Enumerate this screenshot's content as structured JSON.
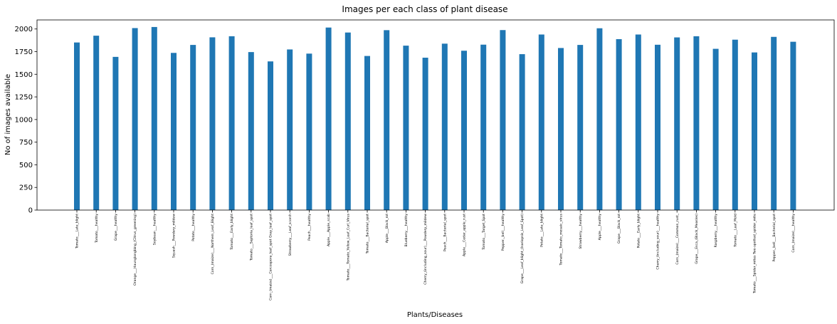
{
  "chart_data": {
    "type": "bar",
    "title": "Images per each class of plant disease",
    "xlabel": "Plants/Diseases",
    "ylabel": "No of images available",
    "ylim": [
      0,
      2100
    ],
    "yticks": [
      0,
      250,
      500,
      750,
      1000,
      1250,
      1500,
      1750,
      2000
    ],
    "bar_color": "#1f77b4",
    "grid": false,
    "categories": [
      "Tomato___Late_blight",
      "Tomato___healthy",
      "Grape___healthy",
      "Orange___Haunglongbing_(Citrus_greening)",
      "Soybean___healthy",
      "Squash___Powdery_mildew",
      "Potato___healthy",
      "Corn_(maize)___Northern_Leaf_Blight",
      "Tomato___Early_blight",
      "Tomato___Septoria_leaf_spot",
      "Corn_(maize)___Cercospora_leaf_spot Gray_leaf_spot",
      "Strawberry___Leaf_scorch",
      "Peach___healthy",
      "Apple___Apple_scab",
      "Tomato___Tomato_Yellow_Leaf_Curl_Virus",
      "Tomato___Bacterial_spot",
      "Apple___Black_rot",
      "Blueberry___healthy",
      "Cherry_(including_sour)___Powdery_mildew",
      "Peach___Bacterial_spot",
      "Apple___Cedar_apple_rust",
      "Tomato___Target_Spot",
      "Pepper,_bell___healthy",
      "Grape___Leaf_blight_(Isariopsis_Leaf_Spot)",
      "Potato___Late_blight",
      "Tomato___Tomato_mosaic_virus",
      "Strawberry___healthy",
      "Apple___healthy",
      "Grape___Black_rot",
      "Potato___Early_blight",
      "Cherry_(including_sour)___healthy",
      "Corn_(maize)___Common_rust_",
      "Grape___Esca_(Black_Measles)",
      "Raspberry___healthy",
      "Tomato___Leaf_Mold",
      "Tomato___Spider_mites Two-spotted_spider_mite",
      "Pepper,_bell___Bacterial_spot",
      "Corn_(maize)___healthy"
    ],
    "values": [
      1851,
      1926,
      1692,
      2010,
      2022,
      1736,
      1824,
      1908,
      1920,
      1745,
      1642,
      1774,
      1728,
      2016,
      1961,
      1702,
      1987,
      1816,
      1683,
      1838,
      1760,
      1827,
      1988,
      1722,
      1939,
      1790,
      1824,
      2008,
      1888,
      1939,
      1826,
      1907,
      1920,
      1781,
      1882,
      1741,
      1913,
      1859
    ]
  }
}
